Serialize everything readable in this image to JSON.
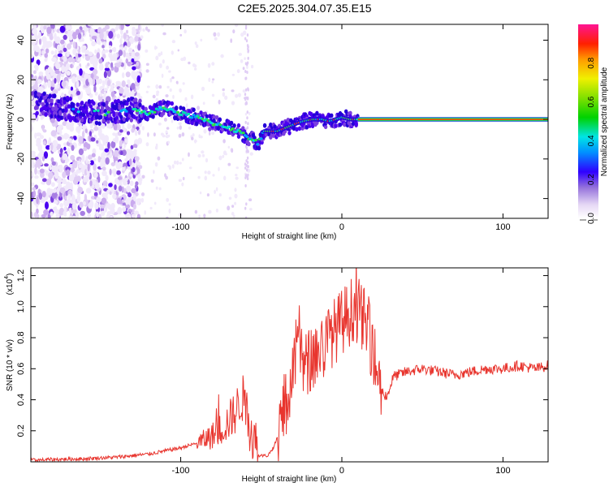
{
  "title": "C2E5.2025.304.07.35.E15",
  "chart_data": [
    {
      "type": "heatmap",
      "name": "spectrogram",
      "xlabel": "Height of straight line (km)",
      "ylabel": "Frequency (Hz)",
      "xlim": [
        -193,
        128
      ],
      "ylim": [
        -50,
        48
      ],
      "xticks": [
        -100,
        0,
        100
      ],
      "xtick_labels": [
        "-100",
        "0",
        "100"
      ],
      "yticks": [
        -40,
        -20,
        0,
        20,
        40
      ],
      "ytick_labels": [
        "-40",
        "-20",
        "0",
        "20",
        "40"
      ],
      "ridge_line": {
        "x": [
          -188,
          -175,
          -160,
          -145,
          -130,
          -120,
          -110,
          -100,
          -90,
          -80,
          -70,
          -60,
          -52,
          -48,
          -40,
          -34,
          -28,
          -24,
          -18,
          -12,
          -8,
          -4,
          0,
          5,
          10,
          20,
          40,
          60,
          80,
          100,
          128
        ],
        "y": [
          8,
          6,
          4,
          3,
          5,
          3,
          6,
          3,
          1,
          -2,
          -4,
          -8,
          -12,
          -6,
          -6,
          -4,
          -2,
          -1,
          0,
          0,
          -1,
          0,
          1,
          0,
          0,
          0,
          0,
          0,
          0,
          0,
          0
        ]
      }
    },
    {
      "type": "colorbar",
      "name": "amplitude-scale",
      "label": "Normalized spectral amplitude",
      "range": [
        0,
        1
      ],
      "ticks": [
        0.0,
        0.2,
        0.4,
        0.6,
        0.8
      ],
      "tick_labels": [
        "0.0",
        "0.2",
        "0.4",
        "0.6",
        "0.8"
      ]
    },
    {
      "type": "line",
      "name": "snr",
      "xlabel": "Height of straight line (km)",
      "ylabel": "SNR (10 * v/v)",
      "multiplier": "(x10",
      "multiplier_exp": "4",
      "multiplier_close": ")",
      "xlim": [
        -193,
        128
      ],
      "ylim": [
        0,
        1.25
      ],
      "xticks": [
        -100,
        0,
        100
      ],
      "xtick_labels": [
        "-100",
        "0",
        "100"
      ],
      "yticks": [
        0.2,
        0.4,
        0.6,
        0.8,
        1.0,
        1.2
      ],
      "ytick_labels": [
        "0.2",
        "0.4",
        "0.6",
        "0.8",
        "1.0",
        "1.2"
      ],
      "color": "#e8352e",
      "x": [
        -193,
        -180,
        -160,
        -140,
        -130,
        -120,
        -110,
        -100,
        -90,
        -80,
        -72,
        -66,
        -62,
        -58,
        -52,
        -46,
        -42,
        -38,
        -34,
        -30,
        -27,
        -24,
        -20,
        -16,
        -12,
        -8,
        -4,
        0,
        4,
        8,
        12,
        16,
        20,
        22,
        25,
        28,
        32,
        40,
        50,
        60,
        70,
        80,
        90,
        100,
        110,
        120,
        128
      ],
      "y": [
        0.01,
        0.015,
        0.02,
        0.03,
        0.04,
        0.05,
        0.07,
        0.09,
        0.12,
        0.17,
        0.24,
        0.32,
        0.42,
        0.28,
        0.04,
        0.04,
        0.1,
        0.22,
        0.4,
        0.55,
        0.85,
        0.6,
        0.65,
        0.7,
        0.72,
        0.8,
        0.85,
        0.9,
        0.95,
        1.0,
        0.95,
        0.85,
        0.7,
        0.55,
        0.45,
        0.42,
        0.55,
        0.58,
        0.6,
        0.58,
        0.56,
        0.58,
        0.6,
        0.6,
        0.62,
        0.6,
        0.62
      ]
    }
  ]
}
